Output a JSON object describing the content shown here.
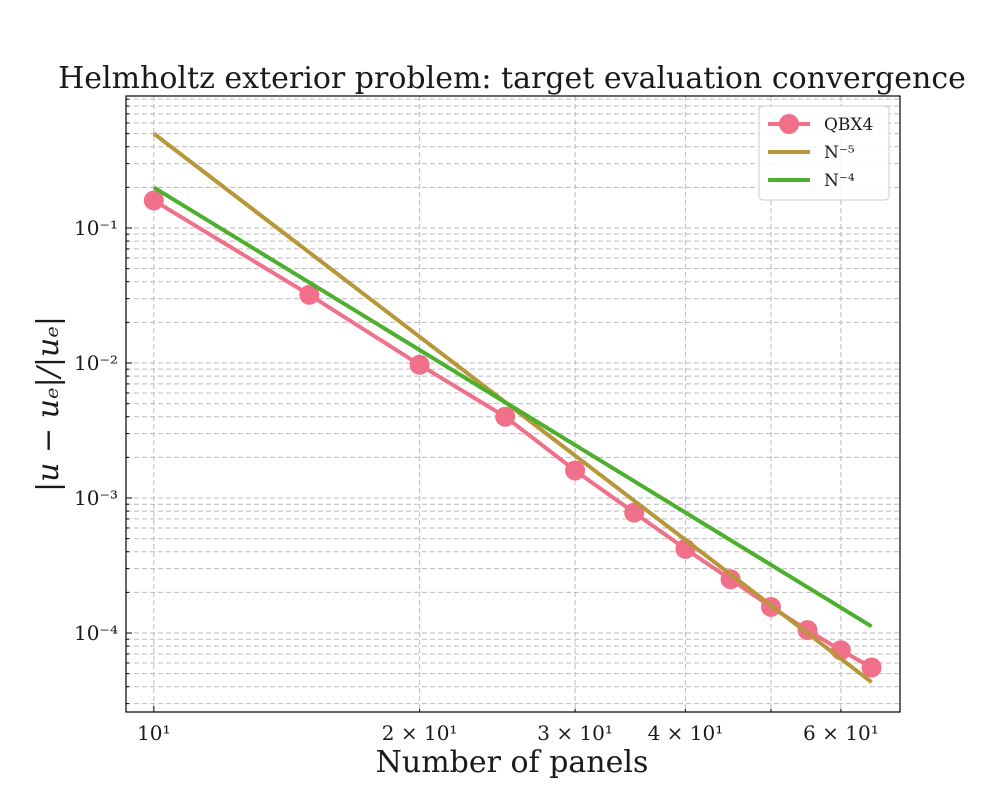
{
  "chart_data": {
    "type": "line",
    "title": "Helmholtz exterior problem: target evaluation convergence",
    "xlabel": "Number of panels",
    "ylabel": "|u − uₑ|/|uₑ|",
    "x_scale": "log",
    "y_scale": "log",
    "xlim": [
      9.3,
      70
    ],
    "ylim": [
      2.6e-05,
      0.95
    ],
    "grid": true,
    "legend_position": "upper right",
    "x_ticks": [
      {
        "value": 10,
        "label": "10¹"
      },
      {
        "value": 20,
        "label": "2 × 10¹"
      },
      {
        "value": 30,
        "label": "3 × 10¹"
      },
      {
        "value": 40,
        "label": "4 × 10¹"
      },
      {
        "value": 60,
        "label": "6 × 10¹"
      }
    ],
    "y_ticks": [
      {
        "value": 0.1,
        "label": "10⁻¹"
      },
      {
        "value": 0.01,
        "label": "10⁻²"
      },
      {
        "value": 0.001,
        "label": "10⁻³"
      },
      {
        "value": 0.0001,
        "label": "10⁻⁴"
      }
    ],
    "series": [
      {
        "name": "QBX4",
        "color": "#f0708a",
        "marker": "circle",
        "x": [
          10,
          15,
          20,
          25,
          30,
          35,
          40,
          45,
          50,
          55,
          60,
          65
        ],
        "y": [
          0.16,
          0.032,
          0.0097,
          0.004,
          0.0016,
          0.00078,
          0.00042,
          0.00025,
          0.000156,
          0.000105,
          7.45e-05,
          5.55e-05
        ]
      },
      {
        "name": "N⁻⁵",
        "color": "#b8963a",
        "marker": "none",
        "x": [
          10,
          65
        ],
        "y": [
          0.5,
          4.32e-05
        ]
      },
      {
        "name": "N⁻⁴",
        "color": "#4caf2e",
        "marker": "none",
        "x": [
          10,
          65
        ],
        "y": [
          0.2,
          0.000112
        ]
      }
    ]
  }
}
